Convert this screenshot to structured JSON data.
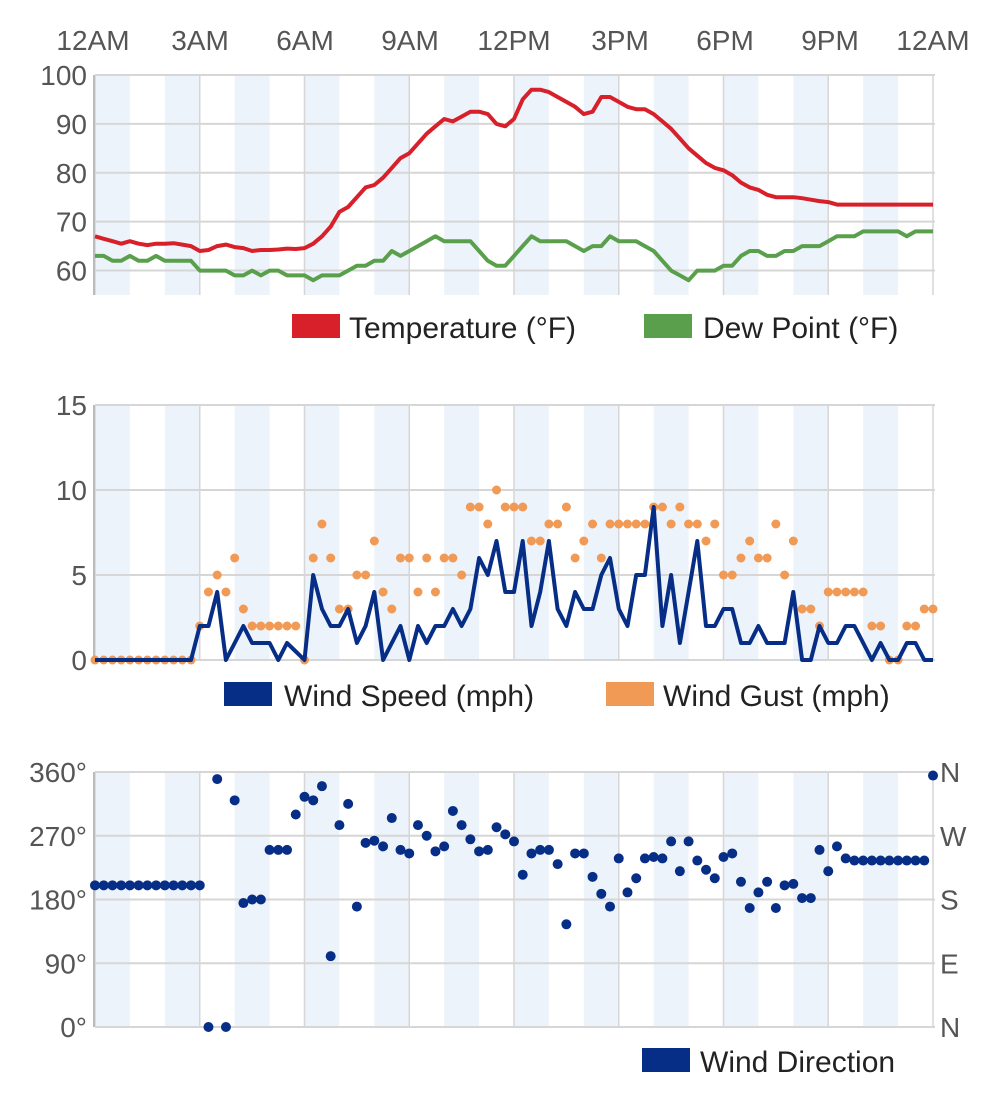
{
  "time_axis": {
    "labels": [
      "12AM",
      "3AM",
      "6AM",
      "9AM",
      "12PM",
      "3PM",
      "6PM",
      "9PM",
      "12AM"
    ]
  },
  "colors": {
    "temperature": "#d7202a",
    "dew_point": "#5aa04c",
    "wind_speed": "#072e86",
    "wind_gust": "#f09a55",
    "wind_direction": "#072e86",
    "band": "#edf3fa",
    "grid": "#d6d6d6",
    "text": "#555555",
    "legend_text": "#222222"
  },
  "chart_data": [
    {
      "type": "line",
      "ylim": [
        55,
        100
      ],
      "yticks": [
        "60",
        "70",
        "80",
        "90",
        "100"
      ],
      "ytick_values": [
        60,
        70,
        80,
        90,
        100
      ],
      "legend": "bottom-right",
      "series": [
        {
          "name": "Temperature (°F)",
          "x": [
            0.0,
            0.25,
            0.5,
            0.75,
            1.0,
            1.25,
            1.5,
            1.75,
            2.0,
            2.25,
            2.5,
            2.75,
            3.0,
            3.25,
            3.5,
            3.75,
            4.0,
            4.25,
            4.5,
            4.75,
            5.0,
            5.25,
            5.5,
            5.75,
            6.0,
            6.25,
            6.5,
            6.75,
            7.0,
            7.25,
            7.5,
            7.75,
            8.0,
            8.25,
            8.5,
            8.75,
            9.0,
            9.25,
            9.5,
            9.75,
            10.0,
            10.25,
            10.5,
            10.75,
            11.0,
            11.25,
            11.5,
            11.75,
            12.0,
            12.25,
            12.5,
            12.75,
            13.0,
            13.25,
            13.5,
            13.75,
            14.0,
            14.25,
            14.5,
            14.75,
            15.0,
            15.25,
            15.5,
            15.75,
            16.0,
            16.25,
            16.5,
            16.75,
            17.0,
            17.25,
            17.5,
            17.75,
            18.0,
            18.25,
            18.5,
            18.75,
            19.0,
            19.25,
            19.5,
            19.75,
            20.0,
            20.25,
            20.5,
            20.75,
            21.0,
            21.25,
            21.5,
            21.75,
            22.0,
            22.25,
            22.5,
            22.75,
            23.0,
            23.25,
            23.5,
            23.75,
            24.0
          ],
          "values": [
            67,
            66.5,
            66,
            65.5,
            66,
            65.5,
            65.2,
            65.5,
            65.5,
            65.6,
            65.3,
            65,
            64,
            64.2,
            65,
            65.3,
            64.8,
            64.6,
            64,
            64.2,
            64.2,
            64.3,
            64.5,
            64.4,
            64.6,
            65.5,
            67,
            69,
            72,
            73,
            75,
            77,
            77.5,
            79,
            81,
            83,
            84,
            86,
            88,
            89.5,
            91,
            90.5,
            91.5,
            92.5,
            92.5,
            92,
            90,
            89.5,
            91,
            95,
            97,
            97,
            96.5,
            95.5,
            94.5,
            93.5,
            92,
            92.5,
            95.5,
            95.5,
            94.5,
            93.5,
            93,
            93,
            92,
            90.5,
            89,
            87,
            85,
            83.5,
            82,
            81,
            80.5,
            79.5,
            78,
            77,
            76.5,
            75.5,
            75,
            75,
            75,
            74.8,
            74.5,
            74.2,
            74,
            73.5,
            73.5,
            73.5,
            73.5,
            73.5,
            73.5,
            73.5,
            73.5,
            73.5,
            73.5,
            73.5,
            73.5
          ]
        },
        {
          "name": "Dew Point (°F)",
          "x": [
            0.0,
            0.25,
            0.5,
            0.75,
            1.0,
            1.25,
            1.5,
            1.75,
            2.0,
            2.25,
            2.5,
            2.75,
            3.0,
            3.25,
            3.5,
            3.75,
            4.0,
            4.25,
            4.5,
            4.75,
            5.0,
            5.25,
            5.5,
            5.75,
            6.0,
            6.25,
            6.5,
            6.75,
            7.0,
            7.25,
            7.5,
            7.75,
            8.0,
            8.25,
            8.5,
            8.75,
            9.0,
            9.25,
            9.5,
            9.75,
            10.0,
            10.25,
            10.5,
            10.75,
            11.0,
            11.25,
            11.5,
            11.75,
            12.0,
            12.25,
            12.5,
            12.75,
            13.0,
            13.25,
            13.5,
            13.75,
            14.0,
            14.25,
            14.5,
            14.75,
            15.0,
            15.25,
            15.5,
            15.75,
            16.0,
            16.25,
            16.5,
            16.75,
            17.0,
            17.25,
            17.5,
            17.75,
            18.0,
            18.25,
            18.5,
            18.75,
            19.0,
            19.25,
            19.5,
            19.75,
            20.0,
            20.25,
            20.5,
            20.75,
            21.0,
            21.25,
            21.5,
            21.75,
            22.0,
            22.25,
            22.5,
            22.75,
            23.0,
            23.25,
            23.5,
            23.75,
            24.0
          ],
          "values": [
            63,
            63,
            62,
            62,
            63,
            62,
            62,
            63,
            62,
            62,
            62,
            62,
            60,
            60,
            60,
            60,
            59,
            59,
            60,
            59,
            60,
            60,
            59,
            59,
            59,
            58,
            59,
            59,
            59,
            60,
            61,
            61,
            62,
            62,
            64,
            63,
            64,
            65,
            66,
            67,
            66,
            66,
            66,
            66,
            64,
            62,
            61,
            61,
            63,
            65,
            67,
            66,
            66,
            66,
            66,
            65,
            64,
            65,
            65,
            67,
            66,
            66,
            66,
            65,
            64,
            62,
            60,
            59,
            58,
            60,
            60,
            60,
            61,
            61,
            63,
            64,
            64,
            63,
            63,
            64,
            64,
            65,
            65,
            65,
            66,
            67,
            67,
            67,
            68,
            68,
            68,
            68,
            68,
            67,
            68,
            68,
            68
          ]
        }
      ]
    },
    {
      "type": "line",
      "ylim": [
        0,
        15
      ],
      "yticks": [
        "0",
        "5",
        "10",
        "15"
      ],
      "ytick_values": [
        0,
        5,
        10,
        15
      ],
      "legend": "bottom-right",
      "series": [
        {
          "name": "Wind Speed (mph)",
          "x": [
            0.0,
            0.25,
            0.5,
            0.75,
            1.0,
            1.25,
            1.5,
            1.75,
            2.0,
            2.25,
            2.5,
            2.75,
            3.0,
            3.25,
            3.5,
            3.75,
            4.0,
            4.25,
            4.5,
            4.75,
            5.0,
            5.25,
            5.5,
            5.75,
            6.0,
            6.25,
            6.5,
            6.75,
            7.0,
            7.25,
            7.5,
            7.75,
            8.0,
            8.25,
            8.5,
            8.75,
            9.0,
            9.25,
            9.5,
            9.75,
            10.0,
            10.25,
            10.5,
            10.75,
            11.0,
            11.25,
            11.5,
            11.75,
            12.0,
            12.25,
            12.5,
            12.75,
            13.0,
            13.25,
            13.5,
            13.75,
            14.0,
            14.25,
            14.5,
            14.75,
            15.0,
            15.25,
            15.5,
            15.75,
            16.0,
            16.25,
            16.5,
            16.75,
            17.0,
            17.25,
            17.5,
            17.75,
            18.0,
            18.25,
            18.5,
            18.75,
            19.0,
            19.25,
            19.5,
            19.75,
            20.0,
            20.25,
            20.5,
            20.75,
            21.0,
            21.25,
            21.5,
            21.75,
            22.0,
            22.25,
            22.5,
            22.75,
            23.0,
            23.25,
            23.5,
            23.75,
            24.0
          ],
          "values": [
            0,
            0,
            0,
            0,
            0,
            0,
            0,
            0,
            0,
            0,
            0,
            0,
            2,
            2,
            4,
            0,
            1,
            2,
            1,
            1,
            1,
            0,
            1,
            0.5,
            0,
            5,
            3,
            2,
            2,
            3,
            1,
            2,
            4,
            0,
            1,
            2,
            0,
            2,
            1,
            2,
            2,
            3,
            2,
            3,
            6,
            5,
            7,
            4,
            4,
            7,
            2,
            4,
            7,
            3,
            2,
            4,
            3,
            3,
            5,
            6,
            3,
            2,
            5,
            5,
            9,
            2,
            5,
            1,
            4,
            7,
            2,
            2,
            3,
            3,
            1,
            1,
            2,
            1,
            1,
            1,
            4,
            0,
            0,
            2,
            1,
            1,
            2,
            2,
            1,
            0,
            1,
            0,
            0,
            1,
            1,
            0,
            0
          ]
        },
        {
          "name": "Wind Gust (mph)",
          "x": [
            0.0,
            0.25,
            0.5,
            0.75,
            1.0,
            1.25,
            1.5,
            1.75,
            2.0,
            2.25,
            2.5,
            2.75,
            3.0,
            3.25,
            3.5,
            3.75,
            4.0,
            4.25,
            4.5,
            4.75,
            5.0,
            5.25,
            5.5,
            5.75,
            6.0,
            6.25,
            6.5,
            6.75,
            7.0,
            7.25,
            7.5,
            7.75,
            8.0,
            8.25,
            8.5,
            8.75,
            9.0,
            9.25,
            9.5,
            9.75,
            10.0,
            10.25,
            10.5,
            10.75,
            11.0,
            11.25,
            11.5,
            11.75,
            12.0,
            12.25,
            12.5,
            12.75,
            13.0,
            13.25,
            13.5,
            13.75,
            14.0,
            14.25,
            14.5,
            14.75,
            15.0,
            15.25,
            15.5,
            15.75,
            16.0,
            16.25,
            16.5,
            16.75,
            17.0,
            17.25,
            17.5,
            17.75,
            18.0,
            18.25,
            18.5,
            18.75,
            19.0,
            19.25,
            19.5,
            19.75,
            20.0,
            20.25,
            20.5,
            20.75,
            21.0,
            21.25,
            21.5,
            21.75,
            22.0,
            22.25,
            22.5,
            22.75,
            23.0,
            23.25,
            23.5,
            23.75,
            24.0
          ],
          "values": [
            0,
            0,
            0,
            0,
            0,
            0,
            0,
            0,
            0,
            0,
            0,
            0,
            2,
            4,
            5,
            4,
            6,
            3,
            2,
            2,
            2,
            2,
            2,
            2,
            0,
            6,
            8,
            6,
            3,
            3,
            5,
            5,
            7,
            4,
            3,
            6,
            6,
            4,
            6,
            4,
            6,
            6,
            5,
            9,
            9,
            8,
            10,
            9,
            9,
            9,
            7,
            7,
            8,
            8,
            9,
            6,
            7,
            8,
            6,
            8,
            8,
            8,
            8,
            8,
            9,
            9,
            8,
            9,
            8,
            8,
            7,
            8,
            5,
            5,
            6,
            7,
            6,
            6,
            8,
            5,
            7,
            3,
            3,
            2,
            4,
            4,
            4,
            4,
            4,
            2,
            2,
            0,
            0,
            2,
            2,
            3,
            3
          ]
        }
      ]
    },
    {
      "type": "scatter",
      "ylim": [
        0,
        360
      ],
      "yticks": [
        "0°",
        "90°",
        "180°",
        "270°",
        "360°"
      ],
      "ytick_values": [
        0,
        90,
        180,
        270,
        360
      ],
      "right_ticks": [
        "N",
        "E",
        "S",
        "W",
        "N"
      ],
      "legend": "bottom-right",
      "series": [
        {
          "name": "Wind Direction",
          "x": [
            0.0,
            0.25,
            0.5,
            0.75,
            1.0,
            1.25,
            1.5,
            1.75,
            2.0,
            2.25,
            2.5,
            2.75,
            3.0,
            3.25,
            3.5,
            3.75,
            4.0,
            4.25,
            4.5,
            4.75,
            5.0,
            5.25,
            5.5,
            5.75,
            6.0,
            6.25,
            6.5,
            6.75,
            7.0,
            7.25,
            7.5,
            7.75,
            8.0,
            8.25,
            8.5,
            8.75,
            9.0,
            9.25,
            9.5,
            9.75,
            10.0,
            10.25,
            10.5,
            10.75,
            11.0,
            11.25,
            11.5,
            11.75,
            12.0,
            12.25,
            12.5,
            12.75,
            13.0,
            13.25,
            13.5,
            13.75,
            14.0,
            14.25,
            14.5,
            14.75,
            15.0,
            15.25,
            15.5,
            15.75,
            16.0,
            16.25,
            16.5,
            16.75,
            17.0,
            17.25,
            17.5,
            17.75,
            18.0,
            18.25,
            18.5,
            18.75,
            19.0,
            19.25,
            19.5,
            19.75,
            20.0,
            20.25,
            20.5,
            20.75,
            21.0,
            21.25,
            21.5,
            21.75,
            22.0,
            22.25,
            22.5,
            22.75,
            23.0,
            23.25,
            23.5,
            23.75,
            24.0
          ],
          "values": [
            200,
            200,
            200,
            200,
            200,
            200,
            200,
            200,
            200,
            200,
            200,
            200,
            200,
            0,
            350,
            0,
            320,
            175,
            180,
            180,
            250,
            250,
            250,
            300,
            325,
            320,
            340,
            100,
            285,
            315,
            170,
            260,
            263,
            255,
            295,
            250,
            245,
            285,
            270,
            248,
            255,
            305,
            285,
            265,
            248,
            250,
            282,
            272,
            262,
            215,
            245,
            250,
            250,
            230,
            145,
            245,
            245,
            212,
            188,
            170,
            238,
            190,
            210,
            238,
            240,
            238,
            262,
            220,
            262,
            235,
            222,
            210,
            240,
            245,
            205,
            168,
            190,
            205,
            168,
            200,
            202,
            182,
            182,
            250,
            220,
            255,
            238,
            235,
            235,
            235,
            235,
            235,
            235,
            235,
            235,
            235,
            355
          ]
        }
      ]
    }
  ]
}
